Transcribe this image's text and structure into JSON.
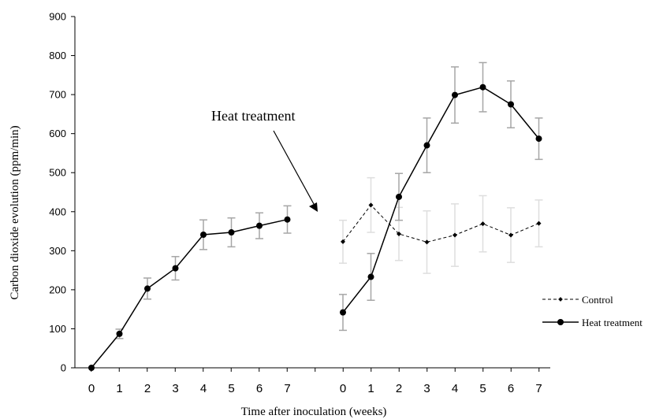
{
  "chart_data": {
    "type": "line",
    "ylabel": "Carbon dioxide evolution (ppm/min)",
    "xlabel": "Time after inoculation (weeks)",
    "ylim": [
      0,
      900
    ],
    "yticks": [
      0,
      100,
      200,
      300,
      400,
      500,
      600,
      700,
      800,
      900
    ],
    "grid": false,
    "legend_position": "right",
    "colors": {
      "heat": "#000000",
      "control": "#000000",
      "heat_error": "#a6a6a6",
      "control_error": "#dedede"
    },
    "annotation": {
      "text": "Heat treatment",
      "arrow": true
    },
    "panels": [
      {
        "x_tick_labels": [
          "0",
          "1",
          "2",
          "3",
          "4",
          "5",
          "6",
          "7"
        ],
        "series": [
          {
            "key": "heat",
            "x": [
              0,
              1,
              2,
              3,
              4,
              5,
              6,
              7
            ],
            "y": [
              0,
              87,
              203,
              255,
              341,
              347,
              364,
              380
            ],
            "error": [
              0,
              12,
              27,
              30,
              38,
              37,
              33,
              35
            ]
          }
        ]
      },
      {
        "x_tick_labels": [
          "0",
          "1",
          "2",
          "3",
          "4",
          "5",
          "6",
          "7"
        ],
        "series": [
          {
            "key": "control",
            "name": "Control",
            "style": "dashed",
            "marker": "diamond",
            "x": [
              0,
              1,
              2,
              3,
              4,
              5,
              6,
              7
            ],
            "y": [
              323,
              417,
              343,
              322,
              340,
              369,
              340,
              370
            ],
            "error": [
              55,
              70,
              68,
              80,
              80,
              72,
              70,
              60
            ]
          },
          {
            "key": "heat",
            "name": "Heat treatment",
            "style": "solid",
            "marker": "circle",
            "x": [
              0,
              1,
              2,
              3,
              4,
              5,
              6,
              7
            ],
            "y": [
              142,
              233,
              438,
              570,
              699,
              719,
              675,
              587
            ],
            "error": [
              46,
              60,
              60,
              70,
              72,
              63,
              60,
              53
            ]
          }
        ]
      }
    ]
  }
}
